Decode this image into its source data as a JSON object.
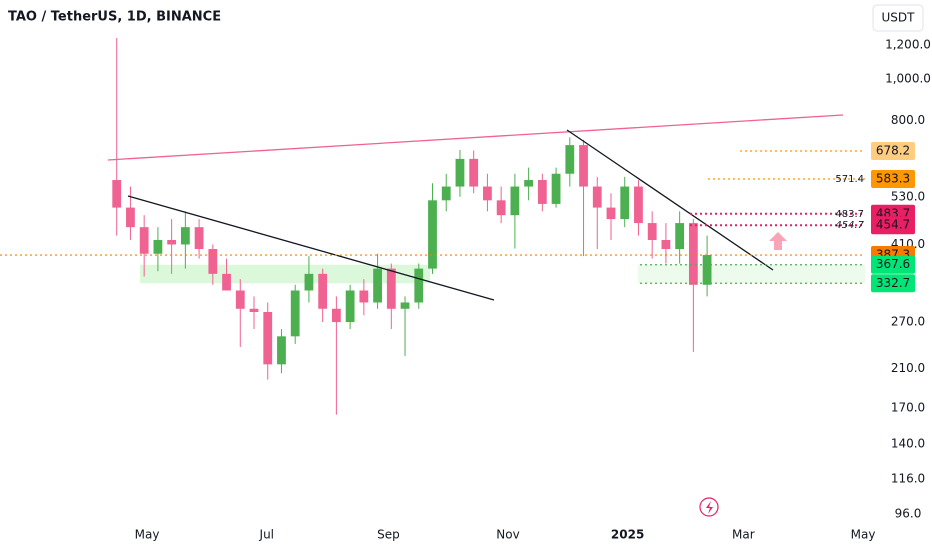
{
  "chart_data": {
    "type": "candlestick",
    "title": "TAO / TetherUS, 1D, BINANCE",
    "currency": "USDT",
    "log_scale": true,
    "up_color": "#4caf50",
    "down_color": "#f06292",
    "xlim": [
      -8,
      55
    ],
    "xticks": [
      {
        "value": 2.71,
        "label": "May"
      },
      {
        "value": 11.43,
        "label": "Jul"
      },
      {
        "value": 20.29,
        "label": "Sep"
      },
      {
        "value": 29,
        "label": "Nov"
      },
      {
        "value": 37.71,
        "label": "2025"
      },
      {
        "value": 46.14,
        "label": "Mar"
      },
      {
        "value": 54.86,
        "label": "May"
      }
    ],
    "ylim": [
      93,
      1529
    ],
    "yticks": [
      {
        "value": 1200,
        "label": "1,200.0"
      },
      {
        "value": 1000,
        "label": "1,000.0"
      },
      {
        "value": 800,
        "label": "800.0"
      },
      {
        "value": 530,
        "label": "530.0"
      },
      {
        "value": 410,
        "label": "410.0"
      },
      {
        "value": 270,
        "label": "270.0"
      },
      {
        "value": 210,
        "label": "210.0"
      },
      {
        "value": 170,
        "label": "170.0"
      },
      {
        "value": 140,
        "label": "140.0"
      },
      {
        "value": 116,
        "label": "116.0"
      },
      {
        "value": 96,
        "label": "96.0"
      }
    ],
    "open": [
      580,
      500,
      450,
      390,
      420,
      410,
      450,
      400,
      350,
      320,
      290,
      285,
      215,
      250,
      320,
      350,
      290,
      270,
      320,
      300,
      360,
      290,
      300,
      360,
      520,
      560,
      650,
      560,
      520,
      480,
      560,
      580,
      510,
      600,
      700,
      560,
      500,
      470,
      560,
      460,
      420,
      400,
      460,
      330
    ],
    "high": [
      1246,
      560,
      480,
      450,
      470,
      490,
      470,
      410,
      380,
      340,
      310,
      300,
      260,
      330,
      385,
      360,
      310,
      330,
      340,
      390,
      370,
      310,
      370,
      570,
      600,
      682,
      680,
      600,
      560,
      600,
      620,
      600,
      620,
      730,
      720,
      590,
      540,
      590,
      580,
      490,
      460,
      490,
      470,
      430
    ],
    "low": [
      430,
      420,
      345,
      355,
      350,
      360,
      380,
      330,
      320,
      236,
      260,
      198,
      205,
      240,
      300,
      270,
      164,
      260,
      280,
      290,
      260,
      225,
      290,
      350,
      490,
      530,
      540,
      490,
      460,
      401,
      520,
      490,
      500,
      560,
      385,
      400,
      420,
      450,
      430,
      380,
      370,
      370,
      230,
      310
    ],
    "close": [
      500,
      450,
      390,
      420,
      410,
      450,
      400,
      350,
      320,
      290,
      285,
      215,
      250,
      320,
      350,
      290,
      270,
      320,
      300,
      360,
      290,
      300,
      360,
      520,
      560,
      650,
      560,
      520,
      480,
      560,
      580,
      510,
      600,
      700,
      560,
      500,
      470,
      560,
      460,
      420,
      400,
      460,
      330,
      387.3
    ],
    "levels": [
      {
        "value": 678.2,
        "color": "#ffcc80"
      },
      {
        "value": 583.3,
        "color": "#ff9800",
        "note": 571.4,
        "note_color": "#e91e63"
      },
      {
        "value": 483.7,
        "color": "#e91e63",
        "note": 483.7,
        "note_color": "#e91e63"
      },
      {
        "value": 454.7,
        "color": "#e91e63",
        "note": 454.7,
        "note_color": "#f57c00"
      },
      {
        "value": 387.3,
        "color": "#f57c00"
      },
      {
        "value": 367.6,
        "color": "#00e676"
      },
      {
        "value": 332.7,
        "color": "#00e676"
      }
    ]
  }
}
